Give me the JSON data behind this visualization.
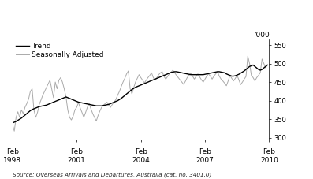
{
  "ylabel_right": "'000",
  "ylim": [
    295,
    565
  ],
  "yticks": [
    300,
    350,
    400,
    450,
    500,
    550
  ],
  "xtick_positions": [
    0,
    36,
    72,
    108,
    144
  ],
  "xtick_labels_line1": [
    "Feb",
    "Feb",
    "Feb",
    "Feb",
    "Feb"
  ],
  "xtick_labels_line2": [
    "1998",
    "2001",
    "2004",
    "2007",
    "2010"
  ],
  "legend_entries": [
    "Trend",
    "Seasonally Adjusted"
  ],
  "trend_color": "#000000",
  "seasonal_color": "#aaaaaa",
  "background_color": "#ffffff",
  "source_text": "Source: Overseas Arrivals and Departures, Australia (cat. no. 3401.0)",
  "trend": [
    340,
    342,
    344,
    347,
    350,
    353,
    357,
    361,
    365,
    369,
    373,
    376,
    378,
    380,
    382,
    384,
    385,
    386,
    387,
    388,
    390,
    392,
    394,
    396,
    398,
    400,
    402,
    404,
    406,
    408,
    410,
    408,
    406,
    404,
    402,
    400,
    398,
    396,
    395,
    394,
    393,
    392,
    391,
    390,
    389,
    388,
    387,
    386,
    386,
    386,
    386,
    387,
    388,
    389,
    390,
    392,
    394,
    396,
    398,
    400,
    403,
    406,
    410,
    414,
    418,
    422,
    426,
    430,
    433,
    436,
    438,
    440,
    442,
    444,
    446,
    448,
    450,
    452,
    454,
    456,
    458,
    460,
    462,
    464,
    466,
    468,
    470,
    472,
    474,
    476,
    477,
    478,
    478,
    477,
    476,
    475,
    474,
    473,
    472,
    471,
    470,
    470,
    470,
    470,
    470,
    470,
    470,
    470,
    471,
    472,
    473,
    474,
    475,
    476,
    477,
    478,
    478,
    477,
    476,
    475,
    472,
    470,
    468,
    466,
    466,
    467,
    469,
    471,
    474,
    477,
    480,
    484,
    488,
    492,
    494,
    496,
    492,
    488,
    484,
    482,
    484,
    488,
    492,
    496
  ],
  "seasonal": [
    336,
    318,
    355,
    370,
    355,
    375,
    365,
    382,
    392,
    404,
    425,
    432,
    375,
    355,
    368,
    390,
    402,
    415,
    425,
    435,
    445,
    455,
    432,
    408,
    450,
    432,
    455,
    462,
    450,
    432,
    410,
    375,
    355,
    348,
    358,
    375,
    382,
    395,
    380,
    368,
    355,
    368,
    382,
    392,
    378,
    365,
    355,
    345,
    360,
    372,
    382,
    388,
    392,
    396,
    388,
    382,
    390,
    396,
    403,
    415,
    425,
    438,
    450,
    460,
    472,
    480,
    432,
    418,
    435,
    450,
    460,
    470,
    462,
    455,
    448,
    455,
    462,
    468,
    475,
    462,
    455,
    462,
    470,
    475,
    478,
    465,
    458,
    465,
    472,
    477,
    482,
    475,
    468,
    462,
    456,
    450,
    444,
    452,
    462,
    468,
    474,
    466,
    458,
    465,
    472,
    464,
    456,
    450,
    458,
    466,
    472,
    466,
    458,
    466,
    472,
    478,
    466,
    458,
    453,
    447,
    440,
    453,
    468,
    460,
    453,
    460,
    468,
    456,
    443,
    450,
    458,
    465,
    520,
    500,
    468,
    462,
    453,
    462,
    468,
    475,
    512,
    500,
    488,
    496
  ]
}
